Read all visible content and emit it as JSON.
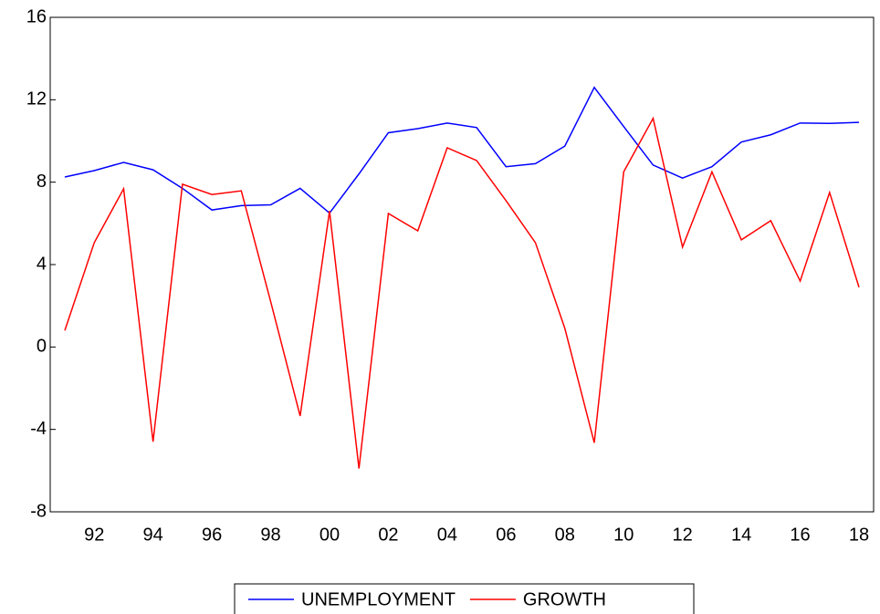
{
  "chart_data": {
    "type": "line",
    "categories": [
      null,
      "92",
      null,
      "94",
      null,
      "96",
      null,
      "98",
      null,
      "00",
      null,
      "02",
      null,
      "04",
      null,
      "06",
      null,
      "08",
      null,
      "10",
      null,
      "12",
      null,
      "14",
      null,
      "16",
      null,
      "18"
    ],
    "series": [
      {
        "name": "UNEMPLOYMENT",
        "color": "#0000ff",
        "values": [
          8.25,
          8.56,
          8.96,
          8.6,
          7.7,
          6.65,
          6.86,
          6.9,
          7.7,
          6.5,
          8.4,
          10.4,
          10.6,
          10.87,
          10.65,
          8.75,
          8.9,
          9.75,
          12.6,
          10.7,
          8.83,
          8.2,
          8.75,
          9.95,
          10.3,
          10.87,
          10.85,
          10.9
        ]
      },
      {
        "name": "GROWTH",
        "color": "#ff0000",
        "values": [
          0.8,
          5.06,
          7.68,
          -4.6,
          7.9,
          7.4,
          7.58,
          2.2,
          -3.35,
          6.6,
          -5.9,
          6.48,
          5.64,
          9.67,
          9.05,
          7.1,
          5.06,
          0.9,
          -4.65,
          8.5,
          11.1,
          4.85,
          8.5,
          5.2,
          6.13,
          3.2,
          7.5,
          2.9
        ]
      }
    ],
    "ylim": [
      -8,
      16
    ],
    "yticks": [
      -8,
      -4,
      0,
      4,
      8,
      12,
      16
    ],
    "legend": "bottom"
  }
}
